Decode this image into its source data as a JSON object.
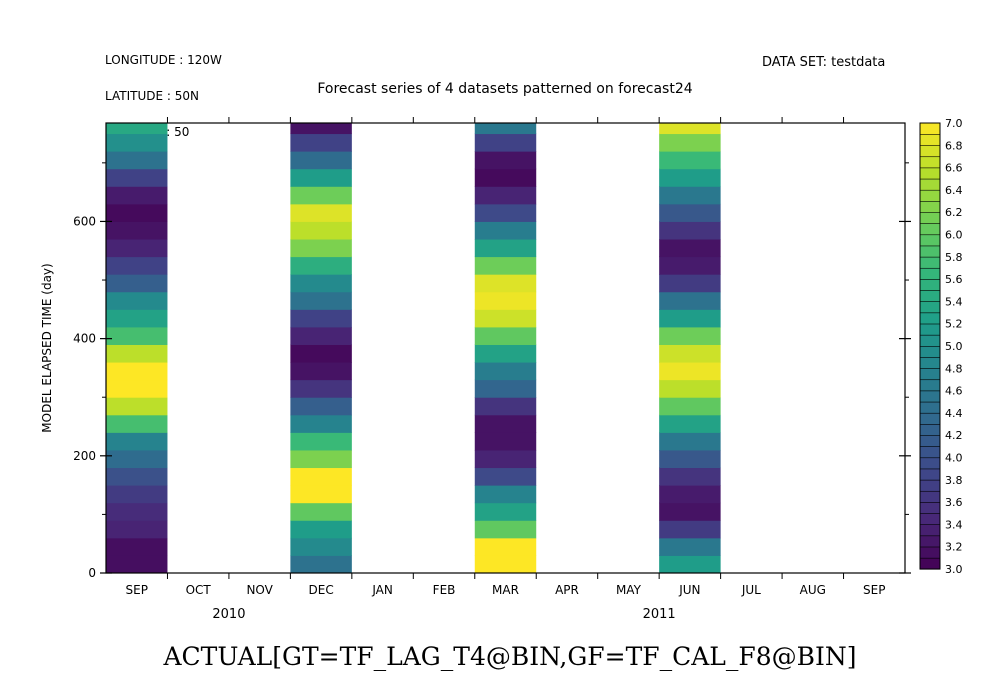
{
  "header": {
    "coords": [
      "LONGITUDE : 120W",
      "LATITUDE : 50N",
      "Z (meter) : 50"
    ],
    "dataset": "DATA SET: testdata"
  },
  "footer": {
    "label": "ACTUAL[GT=TF_LAG_T4@BIN,GF=TF_CAL_F8@BIN]"
  },
  "chart_data": {
    "type": "heatmap",
    "title": "Forecast series of 4 datasets patterned on forecast24",
    "ylabel": "MODEL ELAPSED TIME (day)",
    "ylim": [
      0,
      768
    ],
    "yticks": [
      0,
      200,
      400,
      600
    ],
    "x_months": [
      "SEP",
      "OCT",
      "NOV",
      "DEC",
      "JAN",
      "FEB",
      "MAR",
      "APR",
      "MAY",
      "JUN",
      "JUL",
      "AUG",
      "SEP"
    ],
    "x_years": [
      {
        "label": "2010",
        "month_index": 1.5
      },
      {
        "label": "2011",
        "month_index": 8.5
      }
    ],
    "xlim_months": [
      -0.5,
      12.5
    ],
    "bin_size_days": 30,
    "colorbar": {
      "min": 3.0,
      "max": 7.0,
      "step": 0.1,
      "tick_labels": [
        "3.0",
        "3.2",
        "3.4",
        "3.6",
        "3.8",
        "4.0",
        "4.2",
        "4.4",
        "4.6",
        "4.8",
        "5.0",
        "5.2",
        "5.4",
        "5.6",
        "5.8",
        "6.0",
        "6.2",
        "6.4",
        "6.6",
        "6.8",
        "7.0"
      ]
    },
    "grid": false,
    "series": [
      {
        "month_start": -0.5,
        "month_end": 0.5,
        "values": [
          3.15,
          3.15,
          3.4,
          3.5,
          3.7,
          4.0,
          4.4,
          4.8,
          5.8,
          6.6,
          7.0,
          7.0,
          6.6,
          5.8,
          5.3,
          4.9,
          4.2,
          3.8,
          3.4,
          3.2,
          3.1,
          3.3,
          3.8,
          4.5,
          5.0,
          5.4,
          5.6
        ]
      },
      {
        "month_start": 2.5,
        "month_end": 3.5,
        "values": [
          4.5,
          4.9,
          5.2,
          6.0,
          7.0,
          7.0,
          6.2,
          5.7,
          4.8,
          4.2,
          3.6,
          3.2,
          3.1,
          3.4,
          3.8,
          4.5,
          4.9,
          5.5,
          6.2,
          6.6,
          6.8,
          6.1,
          5.2,
          4.4,
          3.8,
          3.2,
          3.2,
          3.5,
          4.2
        ]
      },
      {
        "month_start": 5.5,
        "month_end": 6.5,
        "values": [
          7.0,
          7.0,
          6.0,
          5.3,
          4.8,
          3.9,
          3.4,
          3.2,
          3.2,
          3.6,
          4.3,
          4.7,
          5.3,
          6.0,
          6.7,
          6.9,
          6.8,
          6.1,
          5.3,
          4.7,
          3.9,
          3.4,
          3.1,
          3.2,
          3.8,
          4.6,
          5.3,
          5.9,
          7.0
        ]
      },
      {
        "month_start": 8.5,
        "month_end": 9.5,
        "values": [
          5.2,
          4.6,
          3.7,
          3.2,
          3.3,
          3.6,
          4.1,
          4.6,
          5.3,
          6.0,
          6.6,
          6.9,
          6.7,
          6.1,
          5.2,
          4.5,
          3.7,
          3.3,
          3.2,
          3.6,
          4.1,
          4.6,
          5.2,
          5.7,
          6.2,
          6.8,
          6.9,
          6.1,
          4.8
        ]
      }
    ]
  }
}
